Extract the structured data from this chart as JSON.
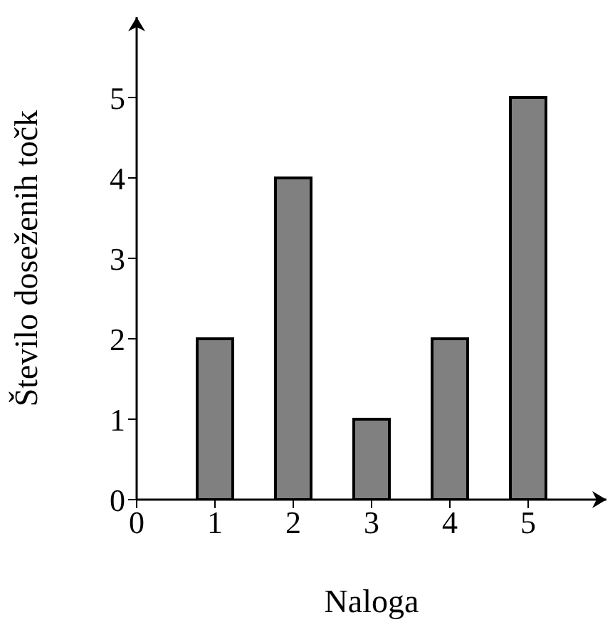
{
  "chart_data": {
    "type": "bar",
    "xlabel": "Naloga",
    "ylabel": "Število doseženih točk",
    "x": [
      1,
      2,
      3,
      4,
      5
    ],
    "values": [
      2,
      4,
      1,
      2,
      5
    ],
    "color": "#808080",
    "xlim": [
      0,
      6
    ],
    "xticks": [
      0,
      1,
      2,
      3,
      4,
      5
    ],
    "ylim": [
      0,
      6
    ],
    "yticks": [
      0,
      1,
      2,
      3,
      4,
      5
    ],
    "grid": false,
    "legend": false
  }
}
